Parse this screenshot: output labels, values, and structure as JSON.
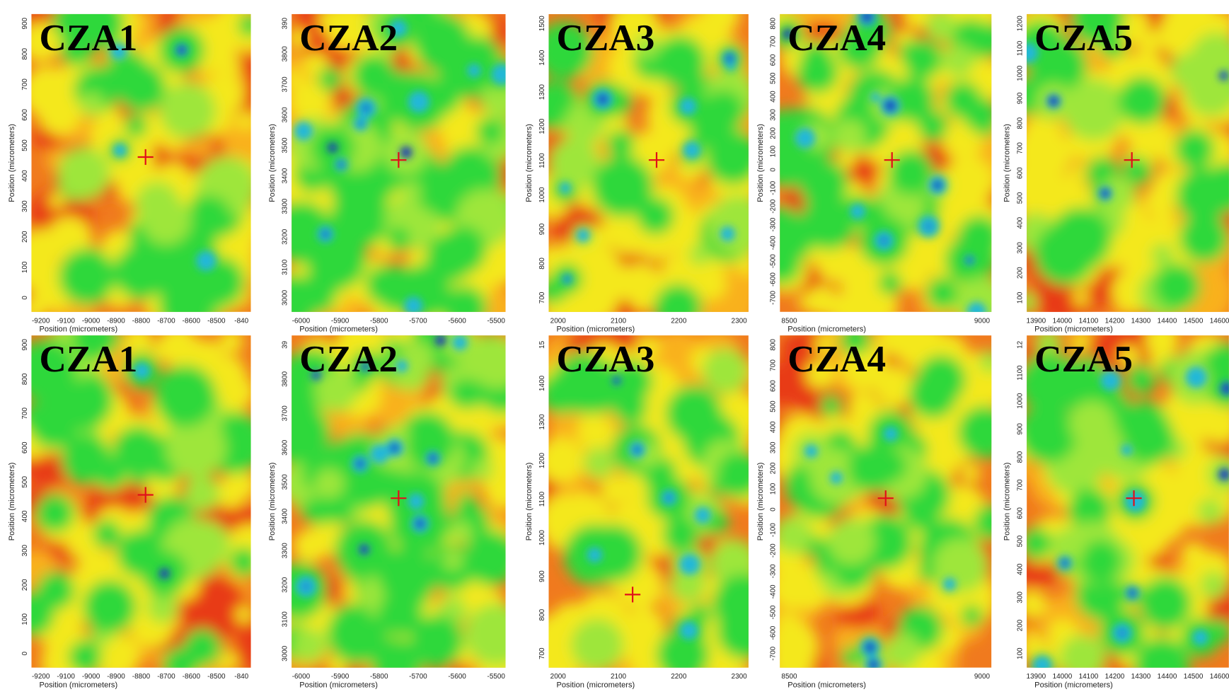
{
  "panels": [
    {
      "title": "CZA1",
      "yticks": [
        "900",
        "800",
        "700",
        "600",
        "500",
        "400",
        "300",
        "200",
        "100",
        "0"
      ],
      "xticks": [
        "-9200",
        "-9100",
        "-9000",
        "-8900",
        "-8800",
        "-8700",
        "-8600",
        "-8500",
        "-840"
      ],
      "xlabel": "Position (micrometers)",
      "ylabel": "Position (micrometers)"
    },
    {
      "title": "CZA2",
      "yticks": [
        "390",
        "3800",
        "3700",
        "3600",
        "3500",
        "3400",
        "3300",
        "3200",
        "3100",
        "3000"
      ],
      "xticks": [
        "-6000",
        "-5900",
        "-5800",
        "-5700",
        "-5600",
        "-5500"
      ],
      "xlabel": "Position (micrometers)",
      "ylabel": "Position (micrometers)"
    },
    {
      "title": "CZA3",
      "yticks": [
        "1500",
        "1400",
        "1300",
        "1200",
        "1100",
        "1000",
        "900",
        "800",
        "700"
      ],
      "xticks": [
        "2000",
        "2100",
        "2200",
        "2300"
      ],
      "xlabel": "Position (micrometers)",
      "ylabel": "Position (micrometers)"
    },
    {
      "title": "CZA4",
      "yticks": [
        "800",
        "700",
        "600",
        "500",
        "400",
        "300",
        "200",
        "100",
        "0",
        "-100",
        "-200",
        "-300",
        "-400",
        "-500",
        "-600",
        "-700"
      ],
      "xticks": [
        "8500",
        "9000"
      ],
      "xlabel": "Position (micrometers)",
      "ylabel": "Position (micrometers)"
    },
    {
      "title": "CZA5",
      "yticks": [
        "1200",
        "1100",
        "1000",
        "900",
        "800",
        "700",
        "600",
        "500",
        "400",
        "300",
        "200",
        "100"
      ],
      "xticks": [
        "13900",
        "14000",
        "14100",
        "14200",
        "14300",
        "14400",
        "14500",
        "14600"
      ],
      "xlabel": "Position (micrometers)",
      "ylabel": "Position (micrometers)"
    },
    {
      "title": "CZA1",
      "yticks": [
        "900",
        "800",
        "700",
        "600",
        "500",
        "400",
        "300",
        "200",
        "100",
        "0"
      ],
      "xticks": [
        "-9200",
        "-9100",
        "-9000",
        "-8900",
        "-8800",
        "-8700",
        "-8600",
        "-8500",
        "-840"
      ],
      "xlabel": "Position (micrometers)",
      "ylabel": "Position (micrometers)"
    },
    {
      "title": "CZA2",
      "yticks": [
        "39",
        "3800",
        "3700",
        "3600",
        "3500",
        "3400",
        "3300",
        "3200",
        "3100",
        "3000"
      ],
      "xticks": [
        "-6000",
        "-5900",
        "-5800",
        "-5700",
        "-5600",
        "-5500"
      ],
      "xlabel": "Position (micrometers)",
      "ylabel": "Position (micrometers)"
    },
    {
      "title": "CZA3",
      "yticks": [
        "15",
        "1400",
        "1300",
        "1200",
        "1100",
        "1000",
        "900",
        "800",
        "700"
      ],
      "xticks": [
        "2000",
        "2100",
        "2200",
        "2300"
      ],
      "xlabel": "Position (micrometers)",
      "ylabel": "Position (micrometers)"
    },
    {
      "title": "CZA4",
      "yticks": [
        "800",
        "700",
        "600",
        "500",
        "400",
        "300",
        "200",
        "100",
        "0",
        "-100",
        "-200",
        "-300",
        "-400",
        "-500",
        "-600",
        "-700"
      ],
      "xticks": [
        "8500",
        "9000"
      ],
      "xlabel": "Position (micrometers)",
      "ylabel": "Position (micrometers)"
    },
    {
      "title": "CZA5",
      "yticks": [
        "12",
        "1100",
        "1000",
        "900",
        "800",
        "700",
        "600",
        "500",
        "400",
        "300",
        "200",
        "100"
      ],
      "xticks": [
        "13900",
        "14000",
        "14100",
        "14200",
        "14300",
        "14400",
        "14500",
        "14600"
      ],
      "xlabel": "Position (micrometers)",
      "ylabel": "Position (micrometers)"
    }
  ]
}
